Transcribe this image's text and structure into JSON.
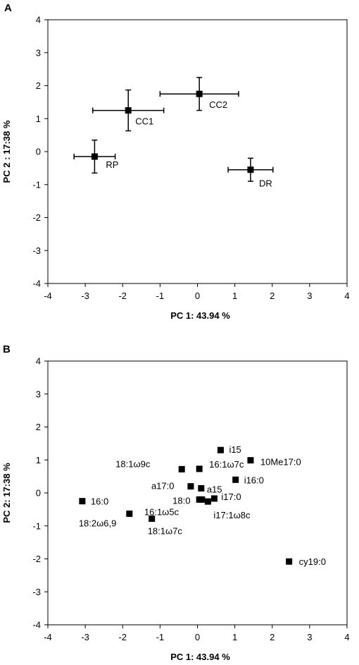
{
  "chart_data": [
    {
      "panel": "A",
      "type": "scatter",
      "xlabel": "PC 1: 43.94 %",
      "ylabel": "PC 2 : 17:38  %",
      "xlim": [
        -4,
        4
      ],
      "ylim": [
        -4,
        4
      ],
      "x_ticks": [
        "-4",
        "-3",
        "-2",
        "-1",
        "0",
        "1",
        "2",
        "3",
        "4"
      ],
      "y_ticks": [
        "4",
        "3",
        "2",
        "1",
        "0",
        "-1",
        "-2",
        "-3",
        "-4"
      ],
      "grid": false,
      "marker": "square",
      "color": "#000000",
      "error_bars": true,
      "points": [
        {
          "label": "RP",
          "x": -2.75,
          "y": -0.15,
          "x_err": 0.55,
          "y_err": 0.5
        },
        {
          "label": "CC1",
          "x": -1.85,
          "y": 1.25,
          "x_err": 0.95,
          "y_err": 0.62
        },
        {
          "label": "CC2",
          "x": 0.05,
          "y": 1.75,
          "x_err": 1.05,
          "y_err": 0.5
        },
        {
          "label": "DR",
          "x": 1.42,
          "y": -0.55,
          "x_err": 0.6,
          "y_err": 0.35
        }
      ]
    },
    {
      "panel": "B",
      "type": "scatter",
      "xlabel": "PC 1: 43.94 %",
      "ylabel": "PC 2: 17:38 %",
      "xlim": [
        -4,
        4
      ],
      "ylim": [
        -4,
        4
      ],
      "x_ticks": [
        "-4",
        "-3",
        "-2",
        "-1",
        "0",
        "1",
        "2",
        "3",
        "4"
      ],
      "y_ticks": [
        "4",
        "3",
        "2",
        "1",
        "0",
        "-1",
        "-2",
        "-3",
        "-4"
      ],
      "grid": false,
      "marker": "square",
      "color": "#000000",
      "error_bars": false,
      "points": [
        {
          "label": "16:0",
          "x": -3.08,
          "y": -0.25
        },
        {
          "label": "18:2ω6,9",
          "x": -1.82,
          "y": -0.63
        },
        {
          "label": "18:1ω7c",
          "x": -1.22,
          "y": -0.78
        },
        {
          "label": "18:1ω9c",
          "x": -0.42,
          "y": 0.72
        },
        {
          "label": "a17:0",
          "x": -0.18,
          "y": 0.2
        },
        {
          "label": "16:1ω7c",
          "x": 0.05,
          "y": 0.73
        },
        {
          "label": "a15",
          "x": 0.1,
          "y": 0.14
        },
        {
          "label": "18:0",
          "x": 0.05,
          "y": -0.2
        },
        {
          "label": "16:1ω5c",
          "x": 0.12,
          "y": -0.2
        },
        {
          "label": "i17:1ω8c",
          "x": 0.28,
          "y": -0.26
        },
        {
          "label": "i17:0",
          "x": 0.45,
          "y": -0.17
        },
        {
          "label": "i15",
          "x": 0.62,
          "y": 1.3
        },
        {
          "label": "i16:0",
          "x": 1.02,
          "y": 0.4
        },
        {
          "label": "10Me17:0",
          "x": 1.42,
          "y": 0.99
        },
        {
          "label": "cy19:0",
          "x": 2.45,
          "y": -2.08
        }
      ]
    }
  ]
}
